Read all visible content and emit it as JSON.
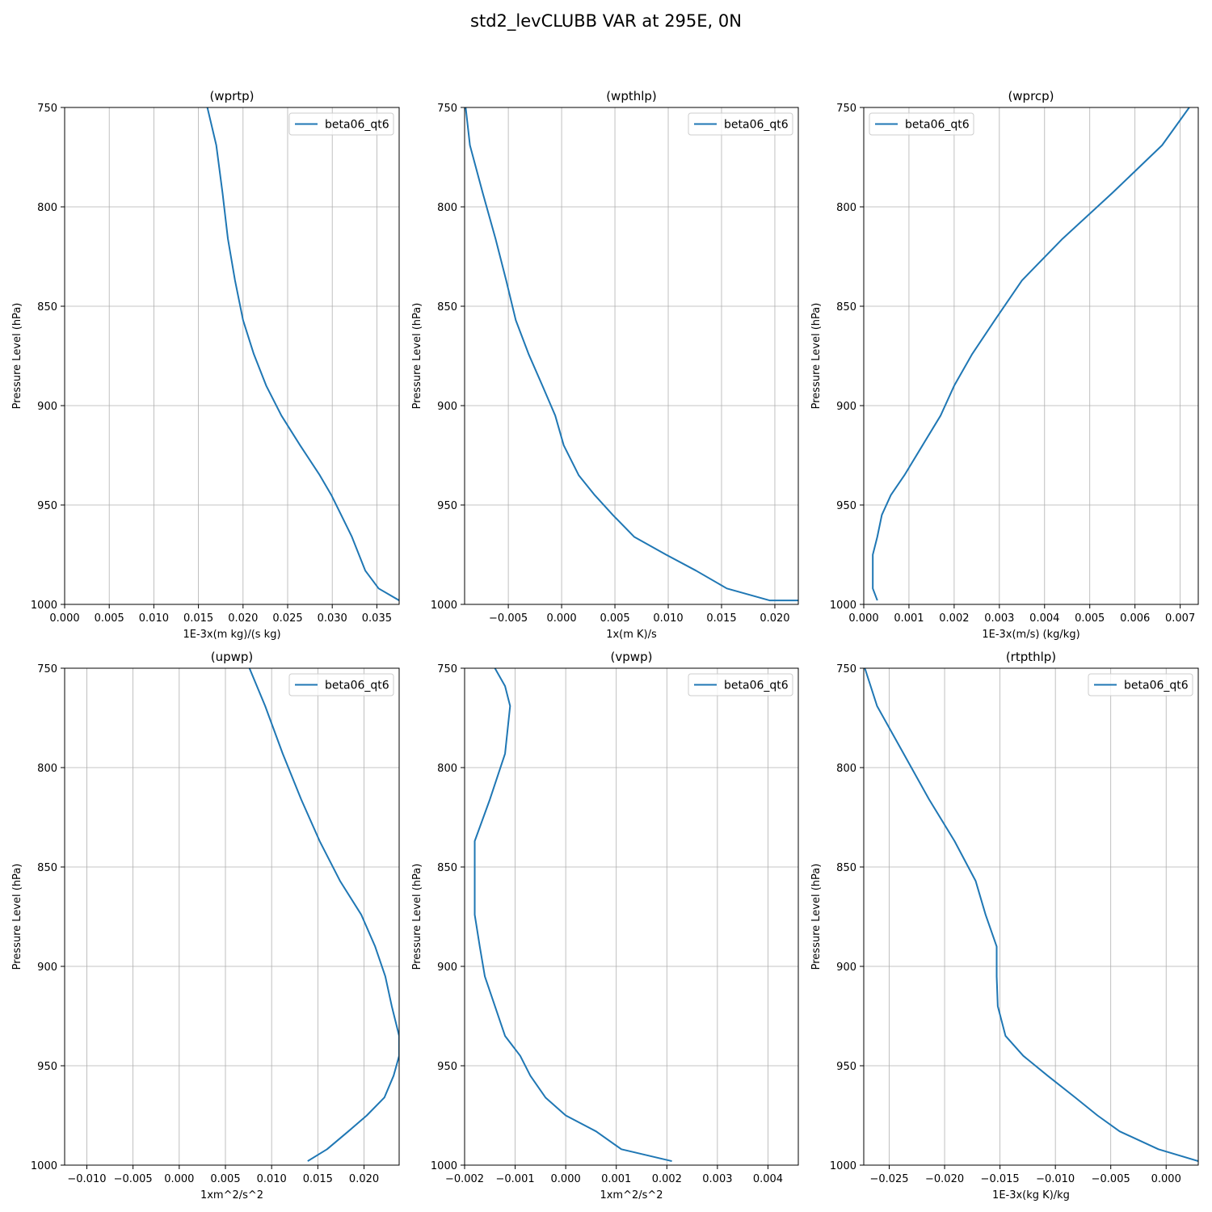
{
  "figure": {
    "title": "std2_levCLUBB VAR at 295E, 0N"
  },
  "chart_data": [
    {
      "type": "line",
      "title": "(wprtp)",
      "xlabel": "1E-3x(m kg)/(s kg)",
      "ylabel": "Pressure Level (hPa)",
      "xlim": [
        0.0,
        0.0375
      ],
      "ylim": [
        1000,
        750
      ],
      "y_inverted": true,
      "xticks": [
        0.0,
        0.005,
        0.01,
        0.015,
        0.02,
        0.025,
        0.03,
        0.035
      ],
      "xtick_labels": [
        "0.000",
        "0.005",
        "0.010",
        "0.015",
        "0.020",
        "0.025",
        "0.030",
        "0.035"
      ],
      "yticks": [
        750,
        800,
        850,
        900,
        950,
        1000
      ],
      "ytick_labels": [
        "750",
        "800",
        "850",
        "900",
        "950",
        "1000"
      ],
      "grid": true,
      "legend_loc": "upper-right",
      "series": [
        {
          "name": "beta06_qt6",
          "color": "#1f77b4",
          "x": [
            0.016,
            0.017,
            0.0177,
            0.0183,
            0.0191,
            0.02,
            0.0212,
            0.0226,
            0.0243,
            0.0264,
            0.0286,
            0.0299,
            0.031,
            0.0322,
            0.0337,
            0.0352,
            0.0375
          ],
          "y": [
            750,
            769,
            793,
            816,
            837,
            857,
            874,
            890,
            905,
            920,
            935,
            945,
            955,
            966,
            983,
            992,
            998
          ]
        }
      ]
    },
    {
      "type": "line",
      "title": "(wpthlp)",
      "xlabel": "1x(m K)/s",
      "ylabel": "Pressure Level (hPa)",
      "xlim": [
        -0.0091,
        0.0222
      ],
      "ylim": [
        1000,
        750
      ],
      "y_inverted": true,
      "xticks": [
        -0.005,
        0.0,
        0.005,
        0.01,
        0.015,
        0.02
      ],
      "xtick_labels": [
        "−0.005",
        "0.000",
        "0.005",
        "0.010",
        "0.015",
        "0.020"
      ],
      "yticks": [
        750,
        800,
        850,
        900,
        950,
        1000
      ],
      "ytick_labels": [
        "750",
        "800",
        "850",
        "900",
        "950",
        "1000"
      ],
      "grid": true,
      "legend_loc": "upper-right",
      "series": [
        {
          "name": "beta06_qt6",
          "color": "#1f77b4",
          "x": [
            -0.009,
            -0.0086,
            -0.0074,
            -0.0062,
            -0.0052,
            -0.0043,
            -0.0031,
            -0.0018,
            -0.0006,
            0.0002,
            0.0016,
            0.0031,
            0.0048,
            0.0068,
            0.0098,
            0.0126,
            0.0155,
            0.0195,
            0.0222
          ],
          "y": [
            750,
            769,
            793,
            816,
            837,
            857,
            874,
            890,
            905,
            920,
            935,
            945,
            955,
            966,
            975,
            983,
            992,
            998,
            998
          ]
        }
      ]
    },
    {
      "type": "line",
      "title": "(wprcp)",
      "xlabel": "1E-3x(m/s) (kg/kg)",
      "ylabel": "Pressure Level (hPa)",
      "xlim": [
        0.0,
        0.0074
      ],
      "ylim": [
        1000,
        750
      ],
      "y_inverted": true,
      "xticks": [
        0.0,
        0.001,
        0.002,
        0.003,
        0.004,
        0.005,
        0.006,
        0.007
      ],
      "xtick_labels": [
        "0.000",
        "0.001",
        "0.002",
        "0.003",
        "0.004",
        "0.005",
        "0.006",
        "0.007"
      ],
      "yticks": [
        750,
        800,
        850,
        900,
        950,
        1000
      ],
      "ytick_labels": [
        "750",
        "800",
        "850",
        "900",
        "950",
        "1000"
      ],
      "grid": true,
      "legend_loc": "upper-left",
      "series": [
        {
          "name": "beta06_qt6",
          "color": "#1f77b4",
          "x": [
            0.0072,
            0.0066,
            0.0055,
            0.0044,
            0.0035,
            0.0029,
            0.0024,
            0.002,
            0.0017,
            0.0013,
            0.0009,
            0.0006,
            0.0004,
            0.0003,
            0.0002,
            0.0002,
            0.0002,
            0.0003
          ],
          "y": [
            750,
            769,
            793,
            816,
            837,
            857,
            874,
            890,
            905,
            920,
            935,
            945,
            955,
            966,
            975,
            983,
            992,
            998
          ]
        }
      ]
    },
    {
      "type": "line",
      "title": "(upwp)",
      "xlabel": "1xm^2/s^2",
      "ylabel": "Pressure Level (hPa)",
      "xlim": [
        -0.0124,
        0.0238
      ],
      "ylim": [
        1000,
        750
      ],
      "y_inverted": true,
      "xticks": [
        -0.01,
        -0.005,
        0.0,
        0.005,
        0.01,
        0.015,
        0.02
      ],
      "xtick_labels": [
        "−0.010",
        "−0.005",
        "0.000",
        "0.005",
        "0.010",
        "0.015",
        "0.020"
      ],
      "yticks": [
        750,
        800,
        850,
        900,
        950,
        1000
      ],
      "ytick_labels": [
        "750",
        "800",
        "850",
        "900",
        "950",
        "1000"
      ],
      "grid": true,
      "legend_loc": "upper-right",
      "series": [
        {
          "name": "beta06_qt6",
          "color": "#1f77b4",
          "x": [
            0.0076,
            0.0093,
            0.0112,
            0.0132,
            0.0152,
            0.0174,
            0.0197,
            0.0212,
            0.0223,
            0.023,
            0.0238,
            0.0238,
            0.0232,
            0.0222,
            0.0203,
            0.0183,
            0.016,
            0.0139
          ],
          "y": [
            750,
            769,
            793,
            816,
            837,
            857,
            874,
            890,
            905,
            920,
            935,
            945,
            955,
            966,
            975,
            983,
            992,
            998
          ]
        }
      ]
    },
    {
      "type": "line",
      "title": "(vpwp)",
      "xlabel": "1xm^2/s^2",
      "ylabel": "Pressure Level (hPa)",
      "xlim": [
        -0.002,
        0.0046
      ],
      "ylim": [
        1000,
        750
      ],
      "y_inverted": true,
      "xticks": [
        -0.002,
        -0.001,
        0.0,
        0.001,
        0.002,
        0.003,
        0.004
      ],
      "xtick_labels": [
        "−0.002",
        "−0.001",
        "0.000",
        "0.001",
        "0.002",
        "0.003",
        "0.004"
      ],
      "yticks": [
        750,
        800,
        850,
        900,
        950,
        1000
      ],
      "ytick_labels": [
        "750",
        "800",
        "850",
        "900",
        "950",
        "1000"
      ],
      "grid": true,
      "legend_loc": "upper-right",
      "series": [
        {
          "name": "beta06_qt6",
          "color": "#1f77b4",
          "x": [
            -0.0014,
            -0.0012,
            -0.0011,
            -0.0012,
            -0.0015,
            -0.0018,
            -0.0018,
            -0.0017,
            -0.0016,
            -0.0014,
            -0.0012,
            -0.0009,
            -0.0007,
            -0.0004,
            0.0,
            0.0006,
            0.0011,
            0.0021
          ],
          "y": [
            750,
            759,
            769,
            793,
            816,
            837,
            874,
            890,
            905,
            920,
            935,
            945,
            955,
            966,
            975,
            983,
            992,
            998
          ]
        }
      ]
    },
    {
      "type": "line",
      "title": "(rtpthlp)",
      "xlabel": "1E-3x(kg K)/kg",
      "ylabel": "Pressure Level (hPa)",
      "xlim": [
        -0.0273,
        0.0029
      ],
      "ylim": [
        1000,
        750
      ],
      "y_inverted": true,
      "xticks": [
        -0.025,
        -0.02,
        -0.015,
        -0.01,
        -0.005,
        0.0
      ],
      "xtick_labels": [
        "−0.025",
        "−0.020",
        "−0.015",
        "−0.010",
        "−0.005",
        "0.000"
      ],
      "yticks": [
        750,
        800,
        850,
        900,
        950,
        1000
      ],
      "ytick_labels": [
        "750",
        "800",
        "850",
        "900",
        "950",
        "1000"
      ],
      "grid": true,
      "legend_loc": "upper-right",
      "series": [
        {
          "name": "beta06_qt6",
          "color": "#1f77b4",
          "x": [
            -0.0272,
            -0.0261,
            -0.0237,
            -0.0214,
            -0.0191,
            -0.0172,
            -0.0163,
            -0.0153,
            -0.0153,
            -0.0152,
            -0.0145,
            -0.0129,
            -0.0107,
            -0.0082,
            -0.0062,
            -0.0042,
            -0.0007,
            0.0029
          ],
          "y": [
            750,
            769,
            793,
            816,
            837,
            857,
            874,
            890,
            905,
            920,
            935,
            945,
            955,
            966,
            975,
            983,
            992,
            998
          ]
        }
      ]
    }
  ]
}
